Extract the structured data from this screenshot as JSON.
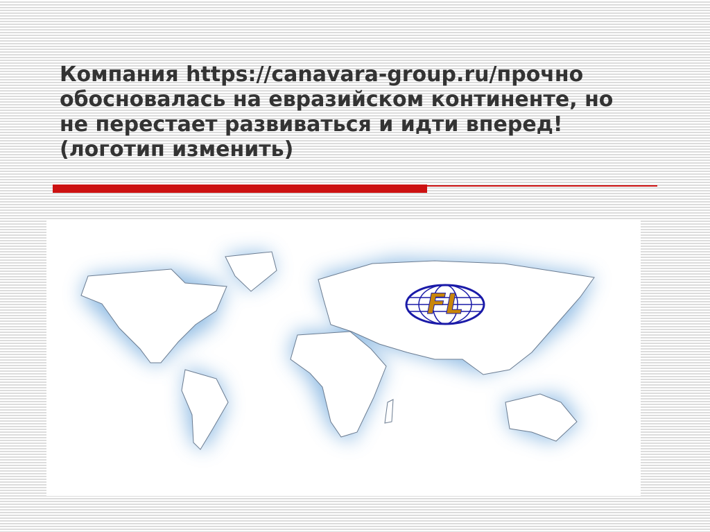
{
  "slide": {
    "title_lines": [
      "Компания https://canavara-group.ru/прочно",
      "обосновалась на евразийском континенте, но",
      "не перестает развиваться и идти вперед!",
      "(логотип изменить)"
    ],
    "accent_color": "#cc1111"
  },
  "map": {
    "logo_text": "FL",
    "logo_color": "#c8860a",
    "globe_color": "#1a1aa8",
    "glow_color": "#6fa8dc"
  }
}
